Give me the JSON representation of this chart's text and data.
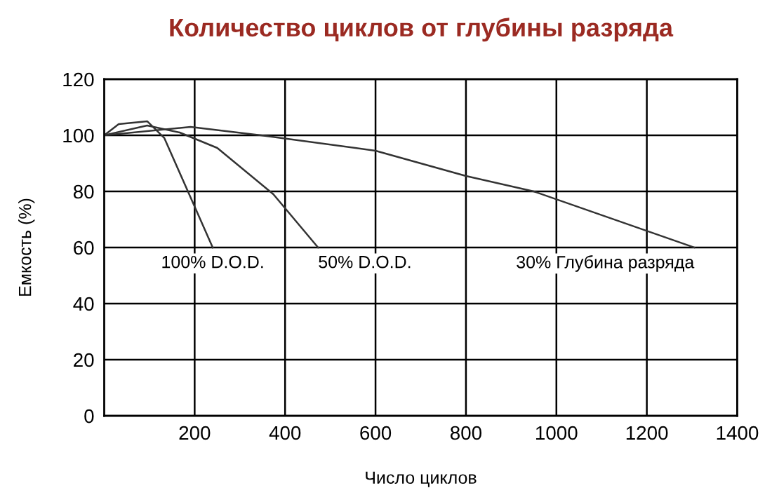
{
  "chart_data": {
    "type": "line",
    "title": "Количество циклов от глубины разряда",
    "xlabel": "Число циклов",
    "ylabel": "Емкость (%)",
    "series": [
      {
        "x": [
          0,
          32,
          95,
          133,
          240
        ],
        "values": [
          100,
          104,
          105,
          99,
          60
        ],
        "color": "#333333"
      },
      {
        "x": [
          0,
          95,
          167,
          250,
          374,
          473
        ],
        "values": [
          100,
          103.5,
          101,
          95.5,
          79,
          60
        ],
        "color": "#333333"
      },
      {
        "x": [
          0,
          191,
          347,
          600,
          800,
          950,
          1305
        ],
        "values": [
          100,
          103,
          100,
          94.5,
          85.5,
          80,
          60
        ],
        "color": "#333333"
      }
    ],
    "annotations": [
      {
        "text": "100% D.O.D.",
        "x": 240,
        "y": 60
      },
      {
        "text": "50% D.O.D.",
        "x": 473,
        "y": 60
      },
      {
        "text": "30% Глубина разряда",
        "x": 1305,
        "y": 60
      }
    ],
    "xlim": [
      0,
      1400
    ],
    "xticks": [
      200,
      400,
      600,
      800,
      1000,
      1200,
      1400
    ],
    "ylim": [
      0,
      120
    ],
    "yticks": [
      0,
      20,
      40,
      60,
      80,
      100,
      120
    ],
    "grid": true
  }
}
